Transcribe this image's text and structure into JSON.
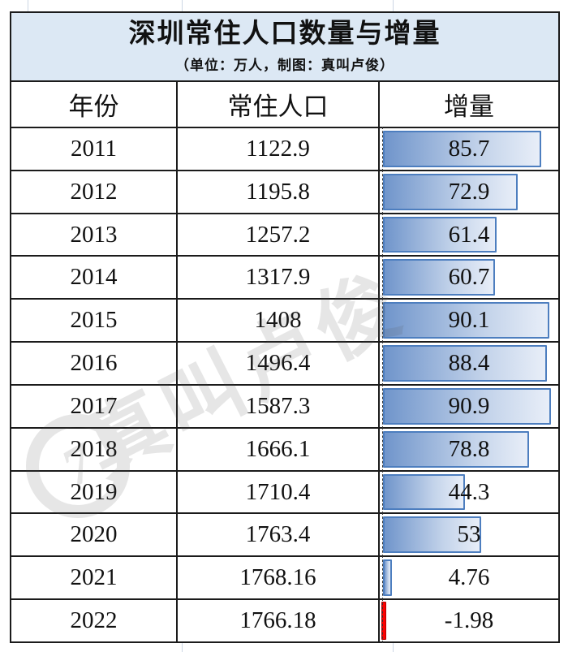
{
  "title": {
    "text": "深圳常住人口数量与增量",
    "subtitle": "（单位：万人，制图：真叫卢俊）"
  },
  "table": {
    "headers": [
      "年份",
      "常住人口",
      "增量"
    ]
  },
  "watermark": {
    "logo_glyph": "7",
    "text": "真叫卢俊"
  },
  "colors": {
    "title_bg": "#dce8f4",
    "table_border": "#1b1b1b",
    "bar_border": "#4d7ebf",
    "bar_fill_start": "#7095cb",
    "bar_fill_mid": "#c3d3ea",
    "bar_fill_end": "#e8eef8",
    "negative_bar": "#fe0000",
    "axis_dash": "#333333"
  },
  "chart_data": {
    "type": "bar",
    "title": "深圳常住人口数量与增量",
    "unit_note": "单位：万人",
    "credit_note": "制图：真叫卢俊",
    "orientation": "horizontal",
    "axis_max": 93,
    "legend_position": "none",
    "categories": [
      "2011",
      "2012",
      "2013",
      "2014",
      "2015",
      "2016",
      "2017",
      "2018",
      "2019",
      "2020",
      "2021",
      "2022"
    ],
    "series": [
      {
        "name": "常住人口",
        "values": [
          1122.9,
          1195.8,
          1257.2,
          1317.9,
          1408,
          1496.4,
          1587.3,
          1666.1,
          1710.4,
          1763.4,
          1768.16,
          1766.18
        ]
      },
      {
        "name": "增量",
        "values": [
          85.7,
          72.9,
          61.4,
          60.7,
          90.1,
          88.4,
          90.9,
          78.8,
          44.3,
          53,
          4.76,
          -1.98
        ]
      }
    ],
    "rows": [
      {
        "year": "2011",
        "population": "1122.9",
        "increment": 85.7,
        "increment_label": "85.7"
      },
      {
        "year": "2012",
        "population": "1195.8",
        "increment": 72.9,
        "increment_label": "72.9"
      },
      {
        "year": "2013",
        "population": "1257.2",
        "increment": 61.4,
        "increment_label": "61.4"
      },
      {
        "year": "2014",
        "population": "1317.9",
        "increment": 60.7,
        "increment_label": "60.7"
      },
      {
        "year": "2015",
        "population": "1408",
        "increment": 90.1,
        "increment_label": "90.1"
      },
      {
        "year": "2016",
        "population": "1496.4",
        "increment": 88.4,
        "increment_label": "88.4"
      },
      {
        "year": "2017",
        "population": "1587.3",
        "increment": 90.9,
        "increment_label": "90.9"
      },
      {
        "year": "2018",
        "population": "1666.1",
        "increment": 78.8,
        "increment_label": "78.8"
      },
      {
        "year": "2019",
        "population": "1710.4",
        "increment": 44.3,
        "increment_label": "44.3"
      },
      {
        "year": "2020",
        "population": "1763.4",
        "increment": 53,
        "increment_label": "53"
      },
      {
        "year": "2021",
        "population": "1768.16",
        "increment": 4.76,
        "increment_label": "4.76"
      },
      {
        "year": "2022",
        "population": "1766.18",
        "increment": -1.98,
        "increment_label": "-1.98"
      }
    ]
  }
}
